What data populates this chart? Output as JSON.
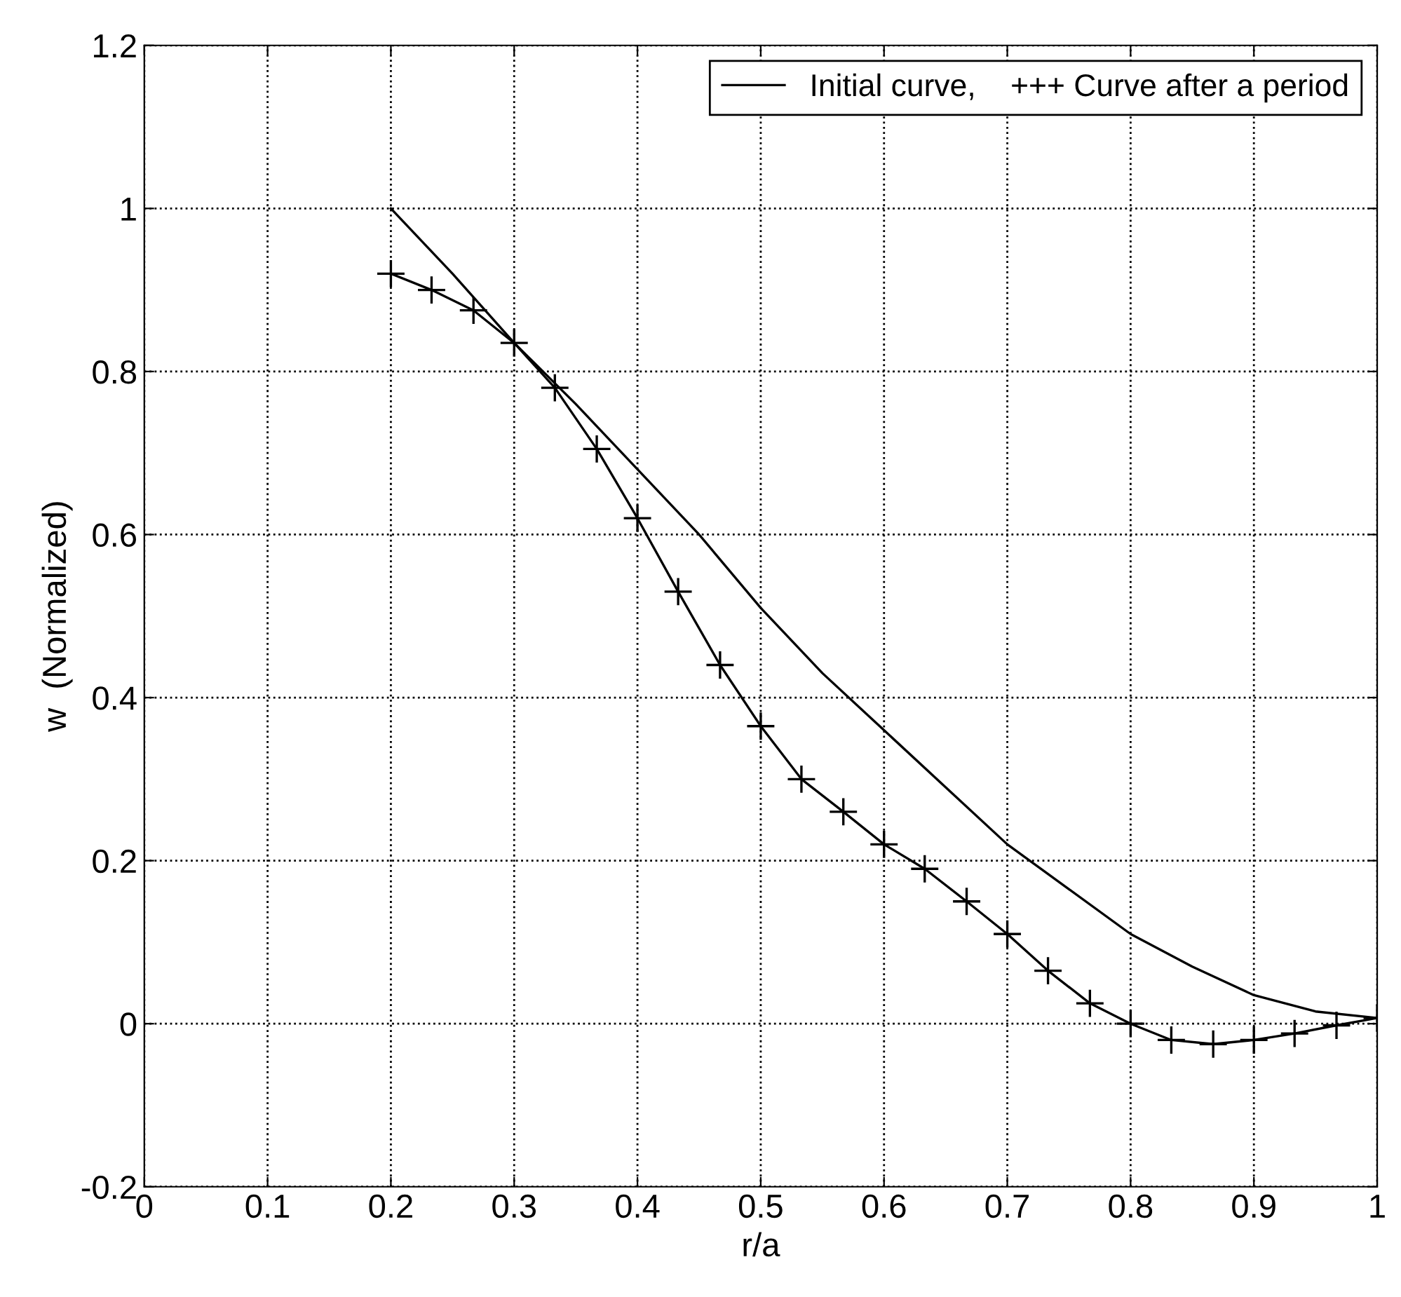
{
  "chart_data": {
    "type": "line",
    "xlabel": "r/a",
    "ylabel": "w  (Normalized)",
    "xlim": [
      0,
      1
    ],
    "ylim": [
      -0.2,
      1.2
    ],
    "xticks": [
      0,
      0.1,
      0.2,
      0.3,
      0.4,
      0.5,
      0.6,
      0.7,
      0.8,
      0.9,
      1
    ],
    "yticks": [
      -0.2,
      0,
      0.2,
      0.4,
      0.6,
      0.8,
      1,
      1.2
    ],
    "grid": true,
    "legend": "top right",
    "series": [
      {
        "name": "Initial curve,    +++ Curve after a period",
        "color": "#000000",
        "marker": "none",
        "x": [
          0.2,
          0.25,
          0.3,
          0.35,
          0.4,
          0.45,
          0.5,
          0.55,
          0.6,
          0.65,
          0.7,
          0.75,
          0.8,
          0.85,
          0.9,
          0.95,
          1.0
        ],
        "values": [
          1.0,
          0.92,
          0.835,
          0.76,
          0.68,
          0.6,
          0.51,
          0.43,
          0.36,
          0.29,
          0.22,
          0.165,
          0.11,
          0.07,
          0.035,
          0.015,
          0.007
        ]
      },
      {
        "color": "#000000",
        "marker": "cross",
        "x": [
          0.2,
          0.233,
          0.267,
          0.3,
          0.333,
          0.367,
          0.4,
          0.433,
          0.467,
          0.5,
          0.533,
          0.567,
          0.6,
          0.633,
          0.667,
          0.7,
          0.733,
          0.767,
          0.8,
          0.833,
          0.867,
          0.9,
          0.933,
          0.967,
          1.0
        ],
        "values": [
          0.92,
          0.9,
          0.875,
          0.835,
          0.78,
          0.705,
          0.62,
          0.53,
          0.44,
          0.365,
          0.3,
          0.26,
          0.22,
          0.19,
          0.15,
          0.11,
          0.065,
          0.025,
          0.0,
          -0.02,
          -0.025,
          -0.02,
          -0.012,
          -0.002,
          0.007
        ]
      }
    ]
  }
}
